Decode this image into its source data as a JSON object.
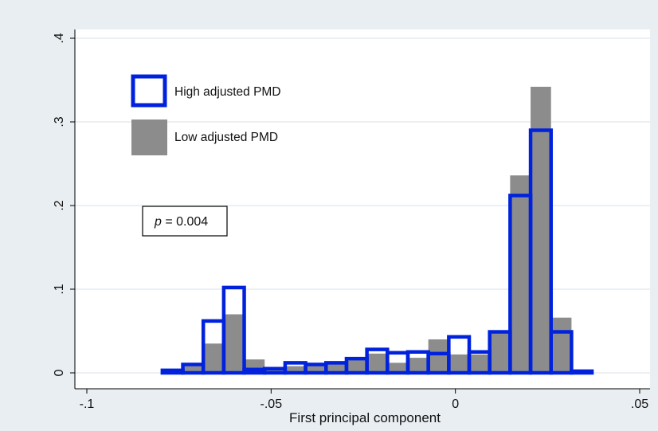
{
  "chart_data": {
    "type": "bar",
    "title": "",
    "xlabel": "First principal component",
    "ylabel": "",
    "xlim": [
      -0.1,
      0.05
    ],
    "ylim": [
      0,
      0.4
    ],
    "x_ticks": [
      -0.1,
      -0.05,
      0,
      0.05
    ],
    "x_tick_labels": [
      "-.1",
      "-.05",
      "0",
      ".05"
    ],
    "y_ticks": [
      0,
      0.1,
      0.2,
      0.3,
      0.4
    ],
    "y_tick_labels": [
      "0",
      ".1",
      ".2",
      ".3",
      ".4"
    ],
    "grid": true,
    "legend_position": "top-left",
    "bin_width": 0.00555,
    "bin_starts": [
      -0.0795,
      -0.07395,
      -0.0684,
      -0.06285,
      -0.0573,
      -0.05175,
      -0.0462,
      -0.04065,
      -0.0351,
      -0.02955,
      -0.024,
      -0.01845,
      -0.0129,
      -0.00735,
      -0.0018,
      0.00375,
      0.0093,
      0.01485,
      0.0204,
      0.02595,
      0.0315
    ],
    "series": [
      {
        "name": "Low adjusted PMD",
        "style": "filled",
        "color": "#8c8c8c",
        "values": [
          0.003,
          0.008,
          0.035,
          0.07,
          0.016,
          0.006,
          0.008,
          0.01,
          0.01,
          0.017,
          0.023,
          0.012,
          0.018,
          0.04,
          0.022,
          0.022,
          0.049,
          0.236,
          0.342,
          0.066,
          0.0
        ]
      },
      {
        "name": "High adjusted PMD",
        "style": "outline",
        "color": "#0022dd",
        "values": [
          0.003,
          0.01,
          0.062,
          0.102,
          0.004,
          0.005,
          0.012,
          0.01,
          0.012,
          0.017,
          0.028,
          0.024,
          0.025,
          0.023,
          0.043,
          0.025,
          0.049,
          0.212,
          0.29,
          0.049,
          0.002
        ]
      }
    ],
    "annotation": {
      "italic": "p",
      "text": " = 0.004"
    }
  }
}
